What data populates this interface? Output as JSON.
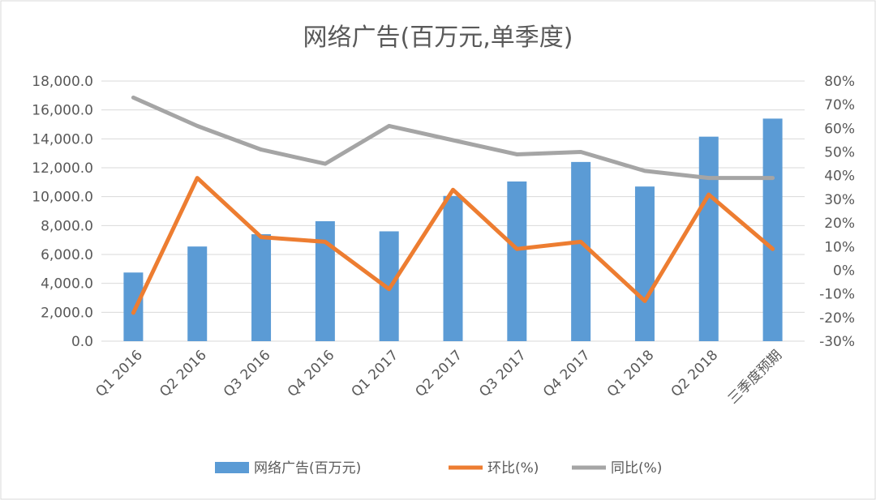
{
  "chart_data": {
    "type": "bar",
    "title": "网络广告(百万元,单季度)",
    "categories": [
      "Q1 2016",
      "Q2 2016",
      "Q3 2016",
      "Q4 2016",
      "Q1 2017",
      "Q2 2017",
      "Q3 2017",
      "Q4 2017",
      "Q1 2018",
      "Q2 2018",
      "三季度预期"
    ],
    "series": [
      {
        "name": "网络广告(百万元)",
        "type": "bar",
        "axis": "left",
        "color": "#5b9bd5",
        "values": [
          4750,
          6550,
          7400,
          8300,
          7600,
          10050,
          11050,
          12400,
          10700,
          14150,
          15400
        ]
      },
      {
        "name": "环比(%)",
        "type": "line",
        "axis": "right",
        "color": "#ed7d31",
        "values": [
          -18,
          39,
          14,
          12,
          -8,
          34,
          9,
          12,
          -13,
          32,
          9
        ]
      },
      {
        "name": "同比(%)",
        "type": "line",
        "axis": "right",
        "color": "#a5a5a5",
        "values": [
          73,
          61,
          51,
          45,
          61,
          55,
          49,
          50,
          42,
          39,
          39
        ]
      }
    ],
    "y_left": {
      "ylim": [
        0,
        18000
      ],
      "ticks": [
        "0.0",
        "2,000.0",
        "4,000.0",
        "6,000.0",
        "8,000.0",
        "10,000.0",
        "12,000.0",
        "14,000.0",
        "16,000.0",
        "18,000.0"
      ]
    },
    "y_right": {
      "ylim": [
        -30,
        80
      ],
      "ticks": [
        "-30%",
        "-20%",
        "-10%",
        "0%",
        "10%",
        "20%",
        "30%",
        "40%",
        "50%",
        "60%",
        "70%",
        "80%"
      ]
    },
    "grid": true,
    "legend_position": "bottom"
  }
}
